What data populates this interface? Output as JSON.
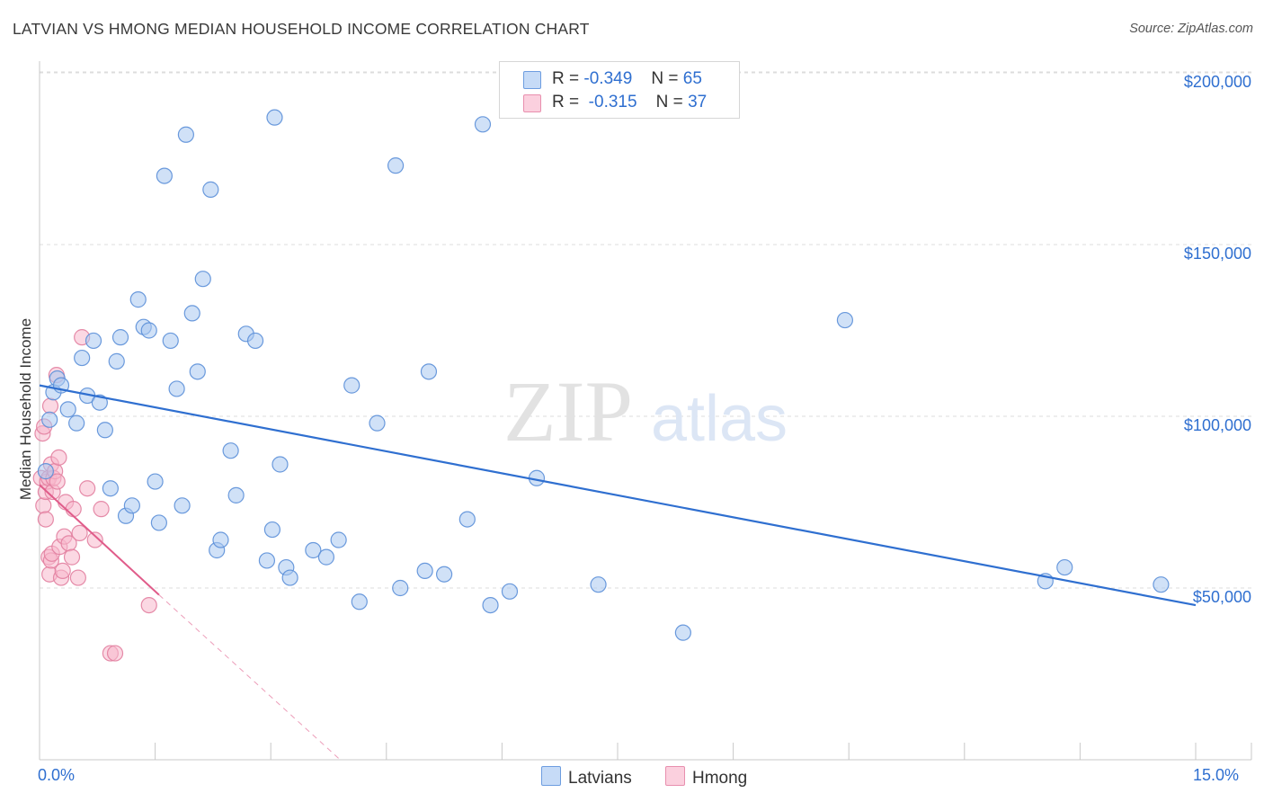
{
  "title": "LATVIAN VS HMONG MEDIAN HOUSEHOLD INCOME CORRELATION CHART",
  "source": "Source: ZipAtlas.com",
  "watermark": {
    "zip": "ZIP",
    "atlas": "atlas"
  },
  "legend": {
    "latvians": {
      "r_label": "R =",
      "r_value": "-0.349",
      "n_label": "N =",
      "n_value": "65"
    },
    "hmong": {
      "r_label": "R =",
      "r_value": "-0.315",
      "n_label": "N =",
      "n_value": "37"
    }
  },
  "colors": {
    "latvians_fill": "#aac8f0",
    "latvians_stroke": "#5b8fd8",
    "latvians_line": "#2f6fd0",
    "hmong_fill": "#f7b8cc",
    "hmong_stroke": "#e27fa0",
    "hmong_line": "#e05c8a",
    "axis_text": "#2f6fd0",
    "grid": "#dcdcdc"
  },
  "chart_data": {
    "type": "scatter",
    "title": "LATVIAN VS HMONG MEDIAN HOUSEHOLD INCOME CORRELATION CHART",
    "xlabel": "",
    "ylabel": "Median Household Income",
    "xlim": [
      0,
      15
    ],
    "ylim": [
      0,
      210000
    ],
    "x_tick_labels": [
      "0.0%",
      "15.0%"
    ],
    "y_ticks": [
      50000,
      100000,
      150000,
      200000
    ],
    "y_tick_labels": [
      "$50,000",
      "$100,000",
      "$150,000",
      "$200,000"
    ],
    "grid": true,
    "series": [
      {
        "name": "Latvians",
        "trend": {
          "x": [
            0,
            15
          ],
          "y": [
            109000,
            45000
          ]
        },
        "points": [
          [
            0.13,
            99000
          ],
          [
            0.18,
            107000
          ],
          [
            0.23,
            111000
          ],
          [
            0.28,
            109000
          ],
          [
            0.37,
            102000
          ],
          [
            0.48,
            98000
          ],
          [
            0.55,
            117000
          ],
          [
            0.62,
            106000
          ],
          [
            0.7,
            122000
          ],
          [
            0.78,
            104000
          ],
          [
            0.85,
            96000
          ],
          [
            0.92,
            79000
          ],
          [
            1.0,
            116000
          ],
          [
            1.05,
            123000
          ],
          [
            1.12,
            71000
          ],
          [
            1.2,
            74000
          ],
          [
            1.28,
            134000
          ],
          [
            1.35,
            126000
          ],
          [
            1.42,
            125000
          ],
          [
            1.5,
            81000
          ],
          [
            1.55,
            69000
          ],
          [
            1.62,
            170000
          ],
          [
            1.7,
            122000
          ],
          [
            1.78,
            108000
          ],
          [
            1.85,
            74000
          ],
          [
            1.9,
            182000
          ],
          [
            1.98,
            130000
          ],
          [
            2.05,
            113000
          ],
          [
            2.12,
            140000
          ],
          [
            2.22,
            166000
          ],
          [
            2.3,
            61000
          ],
          [
            2.35,
            64000
          ],
          [
            2.48,
            90000
          ],
          [
            2.55,
            77000
          ],
          [
            2.68,
            124000
          ],
          [
            2.8,
            122000
          ],
          [
            2.95,
            58000
          ],
          [
            3.02,
            67000
          ],
          [
            3.05,
            187000
          ],
          [
            3.12,
            86000
          ],
          [
            3.2,
            56000
          ],
          [
            3.25,
            53000
          ],
          [
            3.55,
            61000
          ],
          [
            3.72,
            59000
          ],
          [
            3.88,
            64000
          ],
          [
            4.05,
            109000
          ],
          [
            4.15,
            46000
          ],
          [
            4.38,
            98000
          ],
          [
            4.62,
            173000
          ],
          [
            4.68,
            50000
          ],
          [
            5.0,
            55000
          ],
          [
            5.05,
            113000
          ],
          [
            5.25,
            54000
          ],
          [
            5.55,
            70000
          ],
          [
            5.75,
            185000
          ],
          [
            5.85,
            45000
          ],
          [
            6.1,
            49000
          ],
          [
            6.45,
            82000
          ],
          [
            7.25,
            51000
          ],
          [
            8.35,
            37000
          ],
          [
            10.45,
            128000
          ],
          [
            13.05,
            52000
          ],
          [
            13.3,
            56000
          ],
          [
            14.55,
            51000
          ],
          [
            0.08,
            84000
          ]
        ]
      },
      {
        "name": "Hmong",
        "trend": {
          "x": [
            0,
            1.55
          ],
          "y": [
            80000,
            48000
          ]
        },
        "trend_extension": {
          "x": [
            1.55,
            3.9
          ],
          "y": [
            48000,
            0
          ]
        },
        "points": [
          [
            0.02,
            82000
          ],
          [
            0.04,
            95000
          ],
          [
            0.05,
            74000
          ],
          [
            0.06,
            97000
          ],
          [
            0.08,
            78000
          ],
          [
            0.08,
            70000
          ],
          [
            0.1,
            81000
          ],
          [
            0.12,
            82000
          ],
          [
            0.12,
            59000
          ],
          [
            0.13,
            54000
          ],
          [
            0.14,
            103000
          ],
          [
            0.15,
            86000
          ],
          [
            0.15,
            58000
          ],
          [
            0.16,
            60000
          ],
          [
            0.17,
            78000
          ],
          [
            0.18,
            82000
          ],
          [
            0.2,
            84000
          ],
          [
            0.22,
            112000
          ],
          [
            0.23,
            81000
          ],
          [
            0.25,
            88000
          ],
          [
            0.26,
            62000
          ],
          [
            0.28,
            53000
          ],
          [
            0.3,
            55000
          ],
          [
            0.32,
            65000
          ],
          [
            0.34,
            75000
          ],
          [
            0.38,
            63000
          ],
          [
            0.42,
            59000
          ],
          [
            0.44,
            73000
          ],
          [
            0.5,
            53000
          ],
          [
            0.52,
            66000
          ],
          [
            0.55,
            123000
          ],
          [
            0.62,
            79000
          ],
          [
            0.72,
            64000
          ],
          [
            0.8,
            73000
          ],
          [
            0.92,
            31000
          ],
          [
            0.98,
            31000
          ],
          [
            1.42,
            45000
          ]
        ]
      }
    ]
  }
}
